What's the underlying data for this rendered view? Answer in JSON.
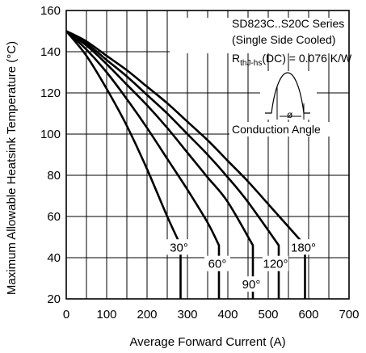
{
  "chart_data": {
    "type": "line",
    "xlabel": "Average Forward Current (A)",
    "ylabel": "Maximum Allowable Heatsink Temperature (°C)",
    "xlim": [
      0,
      700
    ],
    "ylim": [
      20,
      160
    ],
    "xticks": [
      0,
      100,
      200,
      300,
      400,
      500,
      600,
      700
    ],
    "yticks": [
      20,
      40,
      60,
      80,
      100,
      120,
      140,
      160
    ],
    "grid": true,
    "annotation": {
      "lines": [
        "SD823C..S20C Series",
        "(Single Side Cooled)"
      ],
      "rth_main": "R",
      "rth_sub": "thJ-hs",
      "rth_value": "(DC) = 0.076 K/W",
      "inset_label": "Conduction Angle",
      "inset_symbol": "ø"
    },
    "series": [
      {
        "label": "30°",
        "x": [
          0,
          50,
          100,
          150,
          200,
          250,
          283,
          283
        ],
        "y": [
          150,
          138,
          122,
          104,
          83,
          60,
          46,
          20
        ]
      },
      {
        "label": "60°",
        "x": [
          0,
          50,
          100,
          150,
          200,
          250,
          300,
          350,
          378,
          378
        ],
        "y": [
          150,
          141,
          130,
          117,
          103,
          88,
          73,
          57,
          46,
          20
        ]
      },
      {
        "label": "90°",
        "x": [
          0,
          50,
          100,
          150,
          200,
          250,
          300,
          350,
          400,
          462,
          462
        ],
        "y": [
          150,
          143,
          134,
          124,
          114,
          103,
          91,
          79,
          67,
          46,
          20
        ]
      },
      {
        "label": "120°",
        "x": [
          0,
          50,
          100,
          150,
          200,
          250,
          300,
          350,
          400,
          450,
          526,
          526
        ],
        "y": [
          150,
          144,
          136,
          128,
          119,
          110,
          100,
          90,
          79,
          67,
          46,
          20
        ]
      },
      {
        "label": "180°",
        "x": [
          0,
          50,
          100,
          150,
          200,
          250,
          300,
          350,
          400,
          450,
          500,
          591,
          591
        ],
        "y": [
          150,
          145,
          138,
          131,
          123,
          115,
          106,
          97,
          87,
          77,
          66,
          46,
          20
        ]
      }
    ]
  }
}
